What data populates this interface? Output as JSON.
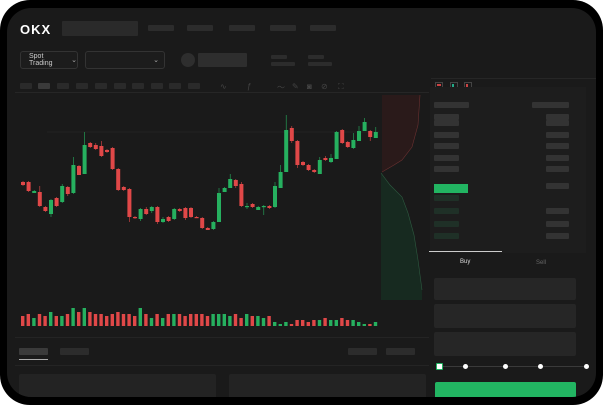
{
  "brand": {
    "logo_text": "OKX"
  },
  "toolbar": {
    "market_label": "Spot Trading",
    "pair_select_value": ""
  },
  "colors": {
    "up": "#26b05f",
    "down": "#e04848",
    "accent": "#22b562",
    "background": "#1a1a1a"
  },
  "icons": [
    "chevron-down-icon",
    "line-chart-icon",
    "pencil-icon",
    "camera-icon",
    "settings-icon",
    "fullscreen-icon",
    "orderbook-both-icon",
    "orderbook-bids-icon",
    "orderbook-asks-icon"
  ],
  "trade": {
    "tabs": [
      {
        "label": "Buy",
        "active": true
      },
      {
        "label": "Sell",
        "active": false
      }
    ],
    "slider_percent": 0
  },
  "chart_data": {
    "type": "candlestick",
    "fields": [
      "open",
      "close",
      "high",
      "low"
    ],
    "candles": [
      [
        118,
        115,
        119,
        114
      ],
      [
        118,
        109,
        119,
        108
      ],
      [
        107,
        109,
        110,
        107
      ],
      [
        108,
        94,
        114,
        93
      ],
      [
        93,
        89,
        94,
        88
      ],
      [
        86,
        100,
        101,
        83
      ],
      [
        102,
        94,
        103,
        93
      ],
      [
        98,
        114,
        116,
        97
      ],
      [
        113,
        106,
        114,
        104
      ],
      [
        107,
        135,
        143,
        106
      ],
      [
        134,
        125,
        135,
        125
      ],
      [
        126,
        155,
        168,
        126
      ],
      [
        157,
        153,
        158,
        152
      ],
      [
        155,
        151,
        157,
        150
      ],
      [
        154,
        144,
        159,
        143
      ],
      [
        150,
        148,
        151,
        147
      ],
      [
        152,
        131,
        153,
        130
      ],
      [
        131,
        110,
        132,
        109
      ],
      [
        113,
        110,
        114,
        109
      ],
      [
        111,
        83,
        112,
        78
      ],
      [
        83,
        82,
        84,
        81
      ],
      [
        81,
        91,
        92,
        79
      ],
      [
        91,
        86,
        93,
        85
      ],
      [
        89,
        93,
        94,
        87
      ],
      [
        93,
        78,
        94,
        76
      ],
      [
        78,
        81,
        83,
        77
      ],
      [
        83,
        79,
        84,
        78
      ],
      [
        81,
        91,
        92,
        80
      ],
      [
        91,
        89,
        92,
        88
      ],
      [
        92,
        82,
        93,
        80
      ],
      [
        92,
        83,
        93,
        82
      ],
      [
        83,
        82,
        84,
        82
      ],
      [
        82,
        72,
        83,
        71
      ],
      [
        72,
        70,
        73,
        70
      ],
      [
        71,
        78,
        79,
        70
      ],
      [
        78,
        107,
        112,
        78
      ],
      [
        108,
        112,
        113,
        108
      ],
      [
        112,
        121,
        126,
        112
      ],
      [
        120,
        114,
        121,
        112
      ],
      [
        116,
        94,
        118,
        93
      ],
      [
        93,
        94,
        97,
        91
      ],
      [
        96,
        93,
        97,
        92
      ],
      [
        90,
        93,
        94,
        90
      ],
      [
        94,
        94,
        95,
        85
      ],
      [
        94,
        92,
        95,
        91
      ],
      [
        93,
        114,
        118,
        92
      ],
      [
        112,
        128,
        135,
        112
      ],
      [
        128,
        170,
        185,
        128
      ],
      [
        172,
        159,
        174,
        157
      ],
      [
        159,
        135,
        160,
        132
      ],
      [
        138,
        135,
        139,
        134
      ],
      [
        135,
        130,
        136,
        129
      ],
      [
        130,
        128,
        131,
        127
      ],
      [
        126,
        140,
        143,
        126
      ],
      [
        142,
        140,
        144,
        139
      ],
      [
        138,
        142,
        146,
        137
      ],
      [
        141,
        168,
        169,
        141
      ],
      [
        170,
        157,
        171,
        156
      ],
      [
        158,
        153,
        159,
        152
      ],
      [
        152,
        160,
        167,
        151
      ],
      [
        159,
        169,
        174,
        159
      ],
      [
        169,
        178,
        182,
        169
      ],
      [
        169,
        163,
        170,
        159
      ],
      [
        162,
        168,
        173,
        162
      ]
    ],
    "volume": [
      5,
      6,
      4,
      6,
      5,
      7,
      5,
      5,
      6,
      9,
      7,
      9,
      7,
      6,
      6,
      5,
      6,
      7,
      6,
      6,
      5,
      9,
      6,
      4,
      6,
      4,
      6,
      6,
      6,
      5,
      6,
      6,
      6,
      5,
      6,
      6,
      6,
      5,
      6,
      4,
      6,
      5,
      5,
      4,
      5,
      2,
      1,
      2,
      1,
      3,
      3,
      2,
      3,
      3,
      4,
      3,
      3,
      4,
      3,
      3,
      2,
      1,
      1,
      2
    ]
  }
}
